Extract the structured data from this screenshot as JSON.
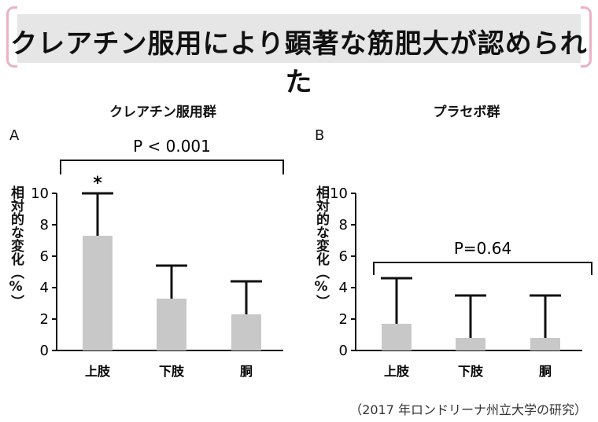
{
  "banner": {
    "title": "クレアチン服用により顕著な筋肥大が認められた"
  },
  "chart_data": [
    {
      "type": "bar",
      "panel": "A",
      "title": "クレアチン服用群",
      "ylabel": "相対的な変化（%）",
      "ylim": [
        0,
        10
      ],
      "yticks": [
        0,
        2,
        4,
        6,
        8,
        10
      ],
      "categories": [
        "上肢",
        "下肢",
        "胴"
      ],
      "values": [
        7.3,
        3.3,
        2.3
      ],
      "error_upper": [
        10.0,
        5.4,
        4.4
      ],
      "markers": [
        "*",
        "",
        ""
      ],
      "annotation": "P < 0.001"
    },
    {
      "type": "bar",
      "panel": "B",
      "title": "プラセボ群",
      "ylabel": "相対的な変化（%）",
      "ylim": [
        0,
        10
      ],
      "yticks": [
        0,
        2,
        4,
        6,
        8,
        10
      ],
      "categories": [
        "上肢",
        "下肢",
        "胴"
      ],
      "values": [
        1.7,
        0.8,
        0.8
      ],
      "error_upper": [
        4.6,
        3.5,
        3.5
      ],
      "markers": [
        "",
        "",
        ""
      ],
      "annotation": "P=0.64"
    }
  ],
  "source": "（2017 年ロンドリーナ州立大学の研究）",
  "colors": {
    "bar": "#c8c8c8",
    "bracket": "#eeb0c6",
    "banner_bg": "#e6e6e6"
  }
}
